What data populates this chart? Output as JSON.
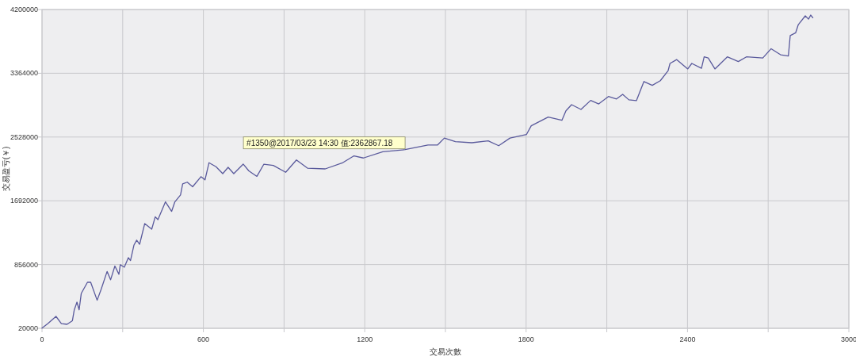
{
  "chart_data": {
    "type": "line",
    "xlabel": "交易次數",
    "ylabel": "交易盈亏(￥)",
    "xlim": [
      0,
      3000
    ],
    "xticks": [
      0,
      {
        "value": 300,
        "label": null
      },
      600,
      {
        "value": 900,
        "label": null
      },
      1200,
      {
        "value": 1500,
        "label": null
      },
      1800,
      {
        "value": 2100,
        "label": null
      },
      2400,
      {
        "value": 2700,
        "label": null
      },
      3000
    ],
    "ylim": [
      20000,
      4200000
    ],
    "yticks": [
      20000,
      856000,
      1692000,
      2528000,
      3364000,
      4200000
    ],
    "grid": true,
    "marker": "none",
    "line_style": "solid",
    "annotations": [
      {
        "text": "#1350@2017/03/23 14:30 值:2362867.18",
        "x": 1350,
        "y": 2362867.18
      }
    ],
    "series": [
      {
        "color": "#5a5a9c",
        "x": [
          0,
          22,
          52,
          72,
          93,
          113,
          120,
          130,
          138,
          146,
          169,
          181,
          205,
          220,
          242,
          255,
          271,
          286,
          291,
          306,
          321,
          329,
          342,
          352,
          363,
          382,
          408,
          421,
          431,
          459,
          482,
          494,
          515,
          523,
          540,
          560,
          591,
          606,
          621,
          647,
          672,
          692,
          713,
          748,
          769,
          799,
          825,
          860,
          906,
          946,
          987,
          1053,
          1119,
          1160,
          1195,
          1267,
          1350,
          1435,
          1471,
          1496,
          1537,
          1598,
          1659,
          1698,
          1740,
          1801,
          1819,
          1882,
          1933,
          1948,
          1969,
          2004,
          2040,
          2070,
          2106,
          2136,
          2159,
          2182,
          2210,
          2238,
          2269,
          2299,
          2328,
          2335,
          2360,
          2401,
          2416,
          2452,
          2462,
          2477,
          2502,
          2548,
          2589,
          2619,
          2680,
          2711,
          2746,
          2775,
          2782,
          2802,
          2812,
          2838,
          2850,
          2858,
          2866
        ],
        "values": [
          22000,
          82000,
          176000,
          82000,
          72000,
          119000,
          262000,
          363000,
          262000,
          478000,
          623000,
          623000,
          388000,
          532000,
          765000,
          656000,
          836000,
          728000,
          854000,
          821000,
          946000,
          908000,
          1112000,
          1176000,
          1122000,
          1393000,
          1320000,
          1482000,
          1445000,
          1678000,
          1553000,
          1678000,
          1768000,
          1913000,
          1936000,
          1876000,
          2008000,
          1966000,
          2191000,
          2138000,
          2048000,
          2131000,
          2048000,
          2173000,
          2084000,
          2012000,
          2172000,
          2156000,
          2066000,
          2227000,
          2120000,
          2110000,
          2193000,
          2281000,
          2253000,
          2335000,
          2362867.18,
          2424000,
          2424000,
          2514000,
          2468000,
          2453000,
          2478000,
          2414000,
          2514000,
          2560000,
          2676000,
          2790000,
          2747000,
          2872000,
          2952000,
          2890000,
          3008000,
          2962000,
          3059000,
          3027000,
          3087000,
          3016000,
          3005000,
          3256000,
          3206000,
          3267000,
          3399000,
          3493000,
          3543000,
          3421000,
          3493000,
          3429000,
          3579000,
          3565000,
          3421000,
          3579000,
          3518000,
          3579000,
          3565000,
          3686000,
          3607000,
          3590000,
          3859000,
          3894000,
          4002000,
          4117000,
          4074000,
          4127000,
          4092000
        ]
      }
    ]
  }
}
